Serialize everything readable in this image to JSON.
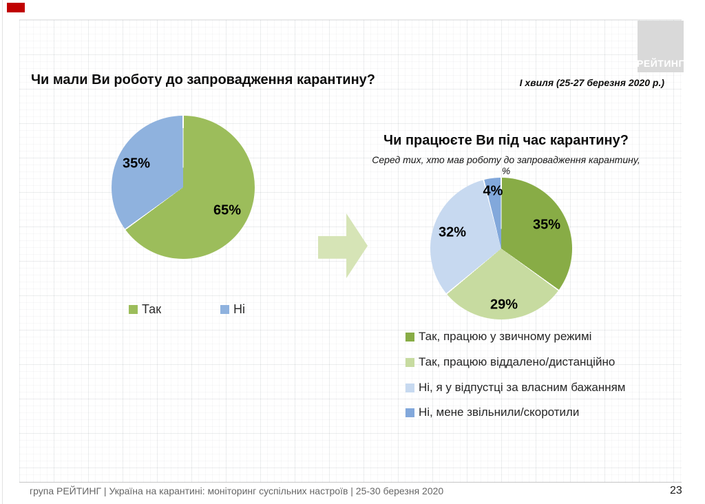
{
  "page": {
    "number": "23",
    "background": "#ffffff"
  },
  "brand": {
    "logo_text": "РЕЙТИНГ",
    "logo_bg": "#d9d9d9",
    "logo_text_color": "#ffffff",
    "accent_color": "#c00000"
  },
  "header": {
    "title": "Чи мали Ви роботу до запровадження карантину?",
    "wave_label": "І хвиля (25-27 березня 2020 р.)"
  },
  "arrow": {
    "color": "#d6e4b6",
    "direction": "right"
  },
  "footer": {
    "text": "група РЕЙТИНГ  |  Україна на карантині: моніторинг суспільних настроїв  |  25-30 березня 2020"
  },
  "chart_data": [
    {
      "type": "pie",
      "title": "Чи мали Ви роботу до запровадження карантину?",
      "units": "%",
      "labels": [
        "Так",
        "Ні"
      ],
      "values": [
        65,
        35
      ],
      "value_labels": [
        "65%",
        "35%"
      ],
      "colors": [
        "#9cbd5b",
        "#8fb2de"
      ],
      "start_angle_deg": 0,
      "direction": "clockwise",
      "legend_position": "bottom"
    },
    {
      "type": "pie",
      "title": "Чи працюєте Ви під час карантину?",
      "subtitle": "Серед тих, хто мав роботу до запровадження карантину, %",
      "units": "%",
      "labels": [
        "Так, працюю у звичному режимі",
        "Так, працюю віддалено/дистанційно",
        "Ні, я у відпустці за власним бажанням",
        "Ні, мене звільнили/скоротили"
      ],
      "values": [
        35,
        29,
        32,
        4
      ],
      "value_labels": [
        "35%",
        "29%",
        "32%",
        "4%"
      ],
      "colors": [
        "#88ac46",
        "#c7dba0",
        "#c7d9f0",
        "#82a8db"
      ],
      "start_angle_deg": 0,
      "direction": "clockwise",
      "legend_position": "bottom"
    }
  ]
}
